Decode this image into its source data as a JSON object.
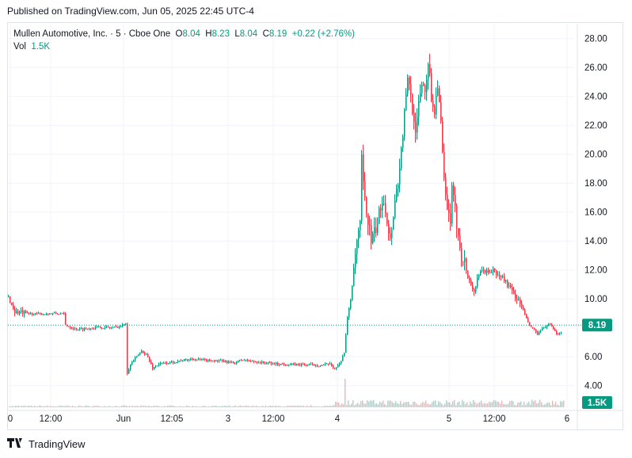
{
  "header": {
    "published": "Published on TradingView.com, Jun 05, 2025 22:45 UTC-4"
  },
  "legend": {
    "symbol": "Mullen Automotive, Inc. · 5 · Cboe One",
    "o_label": "O",
    "o_value": "8.04",
    "h_label": "H",
    "h_value": "8.23",
    "l_label": "L",
    "l_value": "8.04",
    "c_label": "C",
    "c_value": "8.19",
    "change": "+0.22 (+2.76%)",
    "vol_label": "Vol",
    "vol_value": "1.5K"
  },
  "footer": {
    "brand": "TradingView"
  },
  "colors": {
    "up": "#089981",
    "down": "#f23645",
    "grid": "#f0f3fa",
    "text": "#131722"
  },
  "chart_data": {
    "type": "candlestick",
    "price_axis": {
      "ticks": [
        "28.00",
        "26.00",
        "24.00",
        "22.00",
        "20.00",
        "18.00",
        "16.00",
        "14.00",
        "12.00",
        "10.00",
        "6.00",
        "4.00"
      ],
      "range": [
        3.0,
        29.0
      ]
    },
    "time_axis": {
      "ticks": [
        "0",
        "12:00",
        "Jun",
        "12:05",
        "3",
        "12:00",
        "4",
        "5",
        "12:00",
        "6"
      ]
    },
    "last_price": "8.19",
    "last_volume": "1.5K",
    "path": [
      [
        0,
        10.1
      ],
      [
        8,
        9.1
      ],
      [
        22,
        9.0
      ],
      [
        40,
        8.95
      ],
      [
        58,
        9.0
      ],
      [
        70,
        8.95
      ],
      [
        72,
        8.2
      ],
      [
        85,
        7.9
      ],
      [
        100,
        7.95
      ],
      [
        115,
        8.05
      ],
      [
        130,
        8.0
      ],
      [
        142,
        8.1
      ],
      [
        148,
        8.35
      ],
      [
        150,
        4.9
      ],
      [
        155,
        5.6
      ],
      [
        162,
        6.0
      ],
      [
        168,
        6.4
      ],
      [
        175,
        6.1
      ],
      [
        182,
        5.2
      ],
      [
        190,
        5.5
      ],
      [
        205,
        5.6
      ],
      [
        220,
        5.75
      ],
      [
        232,
        5.85
      ],
      [
        250,
        5.75
      ],
      [
        270,
        5.7
      ],
      [
        285,
        5.55
      ],
      [
        295,
        5.8
      ],
      [
        305,
        5.7
      ],
      [
        320,
        5.6
      ],
      [
        340,
        5.5
      ],
      [
        360,
        5.45
      ],
      [
        380,
        5.45
      ],
      [
        395,
        5.4
      ],
      [
        405,
        5.5
      ],
      [
        412,
        5.2
      ],
      [
        418,
        5.5
      ],
      [
        424,
        6.3
      ],
      [
        428,
        8.7
      ],
      [
        432,
        10.0
      ],
      [
        436,
        12.0
      ],
      [
        440,
        14.0
      ],
      [
        444,
        15.0
      ],
      [
        446,
        19.7
      ],
      [
        449,
        17.0
      ],
      [
        452,
        16.0
      ],
      [
        454,
        15.5
      ],
      [
        458,
        14.0
      ],
      [
        462,
        14.5
      ],
      [
        466,
        15.2
      ],
      [
        470,
        16.5
      ],
      [
        474,
        17.0
      ],
      [
        478,
        15.5
      ],
      [
        482,
        14.0
      ],
      [
        486,
        16.0
      ],
      [
        490,
        17.5
      ],
      [
        494,
        19.0
      ],
      [
        498,
        21.5
      ],
      [
        502,
        24.0
      ],
      [
        505,
        25.5
      ],
      [
        508,
        24.0
      ],
      [
        512,
        22.5
      ],
      [
        515,
        21.5
      ],
      [
        518,
        23.5
      ],
      [
        522,
        25.0
      ],
      [
        526,
        24.5
      ],
      [
        530,
        26.5
      ],
      [
        534,
        24.0
      ],
      [
        538,
        23.0
      ],
      [
        542,
        25.0
      ],
      [
        546,
        22.0
      ],
      [
        550,
        18.0
      ],
      [
        554,
        16.0
      ],
      [
        558,
        15.5
      ],
      [
        560,
        17.5
      ],
      [
        564,
        16.0
      ],
      [
        568,
        14.5
      ],
      [
        572,
        13.0
      ],
      [
        576,
        12.5
      ],
      [
        580,
        11.5
      ],
      [
        584,
        11.0
      ],
      [
        588,
        10.5
      ],
      [
        592,
        11.3
      ],
      [
        596,
        11.8
      ],
      [
        600,
        12.0
      ],
      [
        606,
        11.8
      ],
      [
        612,
        12.0
      ],
      [
        618,
        11.6
      ],
      [
        624,
        11.5
      ],
      [
        630,
        11.0
      ],
      [
        636,
        10.5
      ],
      [
        642,
        10.0
      ],
      [
        648,
        9.5
      ],
      [
        654,
        8.6
      ],
      [
        660,
        8.0
      ],
      [
        664,
        7.9
      ],
      [
        668,
        7.5
      ],
      [
        672,
        7.8
      ],
      [
        678,
        8.1
      ],
      [
        684,
        8.2
      ],
      [
        690,
        7.7
      ],
      [
        696,
        7.6
      ],
      [
        702,
        8.0
      ],
      [
        706,
        8.19
      ]
    ],
    "volume_scale_max": 100,
    "volume_spikes": [
      [
        428,
        25
      ],
      [
        432,
        40
      ],
      [
        435,
        30
      ],
      [
        438,
        45
      ],
      [
        440,
        60
      ],
      [
        442,
        55
      ],
      [
        444,
        80
      ],
      [
        446,
        42
      ],
      [
        448,
        50
      ],
      [
        450,
        35
      ],
      [
        452,
        65
      ],
      [
        454,
        40
      ],
      [
        456,
        25
      ],
      [
        460,
        35
      ],
      [
        464,
        28
      ],
      [
        468,
        45
      ],
      [
        472,
        30
      ],
      [
        476,
        42
      ],
      [
        480,
        30
      ],
      [
        484,
        38
      ],
      [
        488,
        55
      ],
      [
        492,
        32
      ],
      [
        496,
        25
      ],
      [
        500,
        30
      ],
      [
        504,
        60
      ],
      [
        508,
        35
      ],
      [
        512,
        40
      ],
      [
        516,
        30
      ],
      [
        520,
        45
      ],
      [
        524,
        25
      ],
      [
        528,
        90
      ],
      [
        532,
        40
      ],
      [
        536,
        30
      ],
      [
        540,
        35
      ],
      [
        544,
        28
      ],
      [
        548,
        50
      ],
      [
        552,
        32
      ],
      [
        556,
        26
      ],
      [
        560,
        30
      ],
      [
        564,
        22
      ],
      [
        570,
        18
      ],
      [
        576,
        15
      ],
      [
        582,
        20
      ],
      [
        590,
        14
      ],
      [
        596,
        12
      ],
      [
        604,
        10
      ],
      [
        612,
        8
      ],
      [
        620,
        10
      ],
      [
        628,
        8
      ],
      [
        636,
        12
      ],
      [
        644,
        9
      ],
      [
        650,
        58
      ],
      [
        656,
        8
      ],
      [
        662,
        12
      ],
      [
        668,
        24
      ],
      [
        676,
        6
      ],
      [
        690,
        5
      ],
      [
        704,
        4
      ]
    ]
  }
}
